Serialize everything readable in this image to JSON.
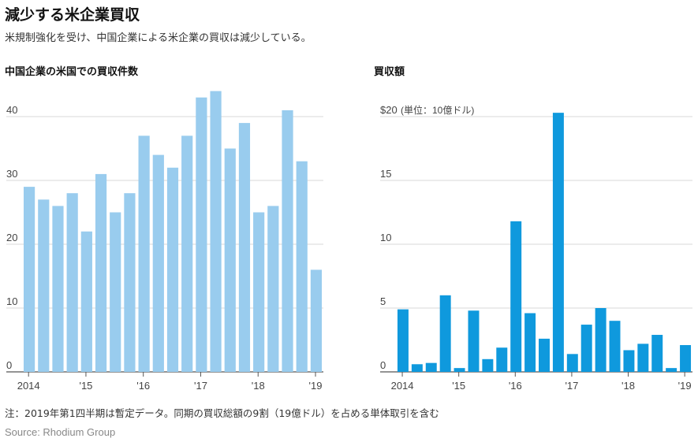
{
  "header": {
    "title": "減少する米企業買収",
    "subtitle": "米規制強化を受け、中国企業による米企業の買収は減少している。"
  },
  "footer": {
    "note": "注：2019年第1四半期は暫定データ。同期の買収総額の9割（19億ドル）を占める単体取引を含む",
    "source": "Source: Rhodium Group"
  },
  "colors": {
    "count_bar": "#99ccee",
    "value_bar": "#0f99dd",
    "grid": "#d8d8d8",
    "axis": "#555555"
  },
  "chart_data": [
    {
      "type": "bar",
      "title": "中国企業の米国での買収件数",
      "xlabel": "",
      "ylabel": "",
      "ylim": [
        0,
        45
      ],
      "yticks": [
        0,
        10,
        20,
        30,
        40
      ],
      "ytick_labels": [
        "0",
        "10",
        "20",
        "30",
        "40"
      ],
      "x_tick_labels": [
        "2014",
        "'15",
        "'16",
        "'17",
        "'18",
        "'19"
      ],
      "grid": true,
      "categories": [
        "2014Q1",
        "2014Q2",
        "2014Q3",
        "2014Q4",
        "2015Q1",
        "2015Q2",
        "2015Q3",
        "2015Q4",
        "2016Q1",
        "2016Q2",
        "2016Q3",
        "2016Q4",
        "2017Q1",
        "2017Q2",
        "2017Q3",
        "2017Q4",
        "2018Q1",
        "2018Q2",
        "2018Q3",
        "2018Q4",
        "2019Q1"
      ],
      "values": [
        29,
        27,
        26,
        28,
        22,
        31,
        25,
        28,
        37,
        34,
        32,
        37,
        43,
        44,
        35,
        39,
        25,
        26,
        41,
        33,
        16
      ]
    },
    {
      "type": "bar",
      "title": "買収額",
      "xlabel": "",
      "ylabel": "",
      "unit_label": "(単位：10億ドル)",
      "ylim": [
        0,
        21
      ],
      "yticks": [
        0,
        5,
        10,
        15,
        20
      ],
      "ytick_labels": [
        "0",
        "5",
        "10",
        "15",
        "$20"
      ],
      "x_tick_labels": [
        "2014",
        "'15",
        "'16",
        "'17",
        "'18",
        "'19"
      ],
      "grid": true,
      "categories": [
        "2014Q1",
        "2014Q2",
        "2014Q3",
        "2014Q4",
        "2015Q1",
        "2015Q2",
        "2015Q3",
        "2015Q4",
        "2016Q1",
        "2016Q2",
        "2016Q3",
        "2016Q4",
        "2017Q1",
        "2017Q2",
        "2017Q3",
        "2017Q4",
        "2018Q1",
        "2018Q2",
        "2018Q3",
        "2018Q4",
        "2019Q1"
      ],
      "values": [
        4.9,
        0.6,
        0.7,
        6.0,
        0.3,
        4.8,
        1.0,
        1.9,
        11.8,
        4.6,
        2.6,
        20.3,
        1.4,
        3.7,
        5.0,
        4.0,
        1.7,
        2.2,
        2.9,
        0.3,
        2.1
      ]
    }
  ]
}
